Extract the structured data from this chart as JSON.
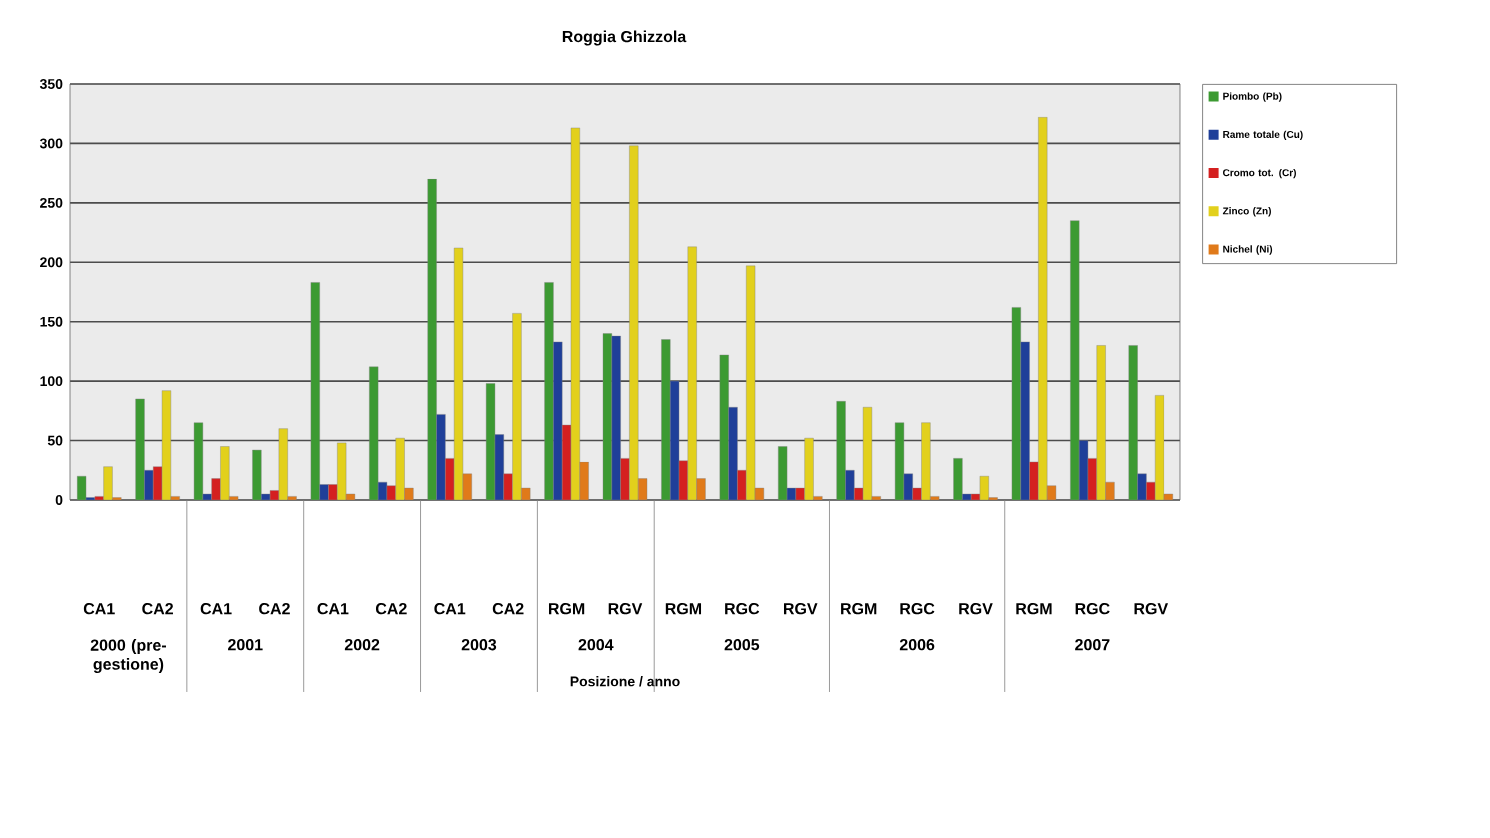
{
  "chart_data": {
    "type": "bar",
    "title": "Roggia Ghizzola",
    "xlabel": "Posizione / anno",
    "categories": [
      "CA1",
      "CA2",
      "CA1",
      "CA2",
      "CA1",
      "CA2",
      "CA1",
      "CA2",
      "RGM",
      "RGV",
      "RGM",
      "RGC",
      "RGV",
      "RGM",
      "RGC",
      "RGV",
      "RGM",
      "RGC",
      "RGV"
    ],
    "annotations": [
      "2000 (pre-gestione)",
      "2001",
      "2002",
      "2003",
      "2004",
      "2005",
      "2006",
      "2007"
    ],
    "series": [
      {
        "name": "Piombo (Pb)",
        "color": "#3c9a32",
        "values": [
          20,
          85,
          65,
          42,
          183,
          112,
          270,
          98,
          183,
          140,
          135,
          122,
          45,
          83,
          65,
          35,
          162,
          235,
          130
        ]
      },
      {
        "name": "Rame totale (Cu)",
        "color": "#1f3f99",
        "values": [
          2,
          25,
          5,
          5,
          13,
          15,
          72,
          55,
          133,
          138,
          100,
          78,
          10,
          25,
          22,
          5,
          133,
          50,
          22
        ]
      },
      {
        "name": "Cromo tot. (Cr)",
        "color": "#d42020",
        "values": [
          3,
          28,
          18,
          8,
          13,
          12,
          35,
          22,
          63,
          35,
          33,
          25,
          10,
          10,
          10,
          5,
          32,
          35,
          15
        ]
      },
      {
        "name": "Zinco (Zn)",
        "color": "#e2d01c",
        "values": [
          28,
          92,
          45,
          60,
          48,
          52,
          212,
          157,
          313,
          298,
          213,
          197,
          52,
          78,
          65,
          20,
          322,
          130,
          88
        ]
      },
      {
        "name": "Nichel (Ni)",
        "color": "#e07a1a",
        "values": [
          2,
          3,
          3,
          3,
          5,
          10,
          22,
          10,
          32,
          18,
          18,
          10,
          3,
          3,
          3,
          2,
          12,
          15,
          5
        ]
      }
    ],
    "ylim": [
      0,
      350
    ],
    "yticks": [
      0,
      50,
      100,
      150,
      200,
      250,
      300,
      350
    ],
    "grid": "y",
    "legend": "right"
  }
}
